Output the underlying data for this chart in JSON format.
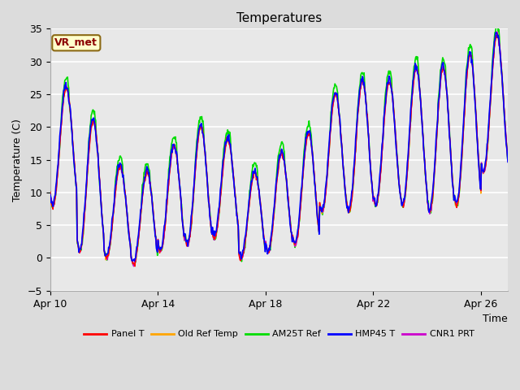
{
  "title": "Temperatures",
  "xlabel": "Time",
  "ylabel": "Temperature (C)",
  "ylim": [
    -5,
    35
  ],
  "yticks": [
    -5,
    0,
    5,
    10,
    15,
    20,
    25,
    30,
    35
  ],
  "xtick_labels": [
    "Apr 10",
    "Apr 14",
    "Apr 18",
    "Apr 22",
    "Apr 26"
  ],
  "xtick_positions": [
    0,
    4,
    8,
    12,
    16
  ],
  "annotation_text": "VR_met",
  "bg_color": "#dcdcdc",
  "plot_bg_color": "#e8e8e8",
  "series": [
    {
      "label": "Panel T",
      "color": "#ff0000",
      "lw": 1.0,
      "zorder": 4
    },
    {
      "label": "Old Ref Temp",
      "color": "#ffa500",
      "lw": 1.0,
      "zorder": 3
    },
    {
      "label": "AM25T Ref",
      "color": "#00dd00",
      "lw": 1.2,
      "zorder": 2
    },
    {
      "label": "HMP45 T",
      "color": "#0000ff",
      "lw": 1.2,
      "zorder": 5
    },
    {
      "label": "CNR1 PRT",
      "color": "#cc00cc",
      "lw": 1.0,
      "zorder": 3
    }
  ],
  "title_fontsize": 11,
  "axis_label_fontsize": 9,
  "tick_fontsize": 9,
  "legend_fontsize": 8
}
